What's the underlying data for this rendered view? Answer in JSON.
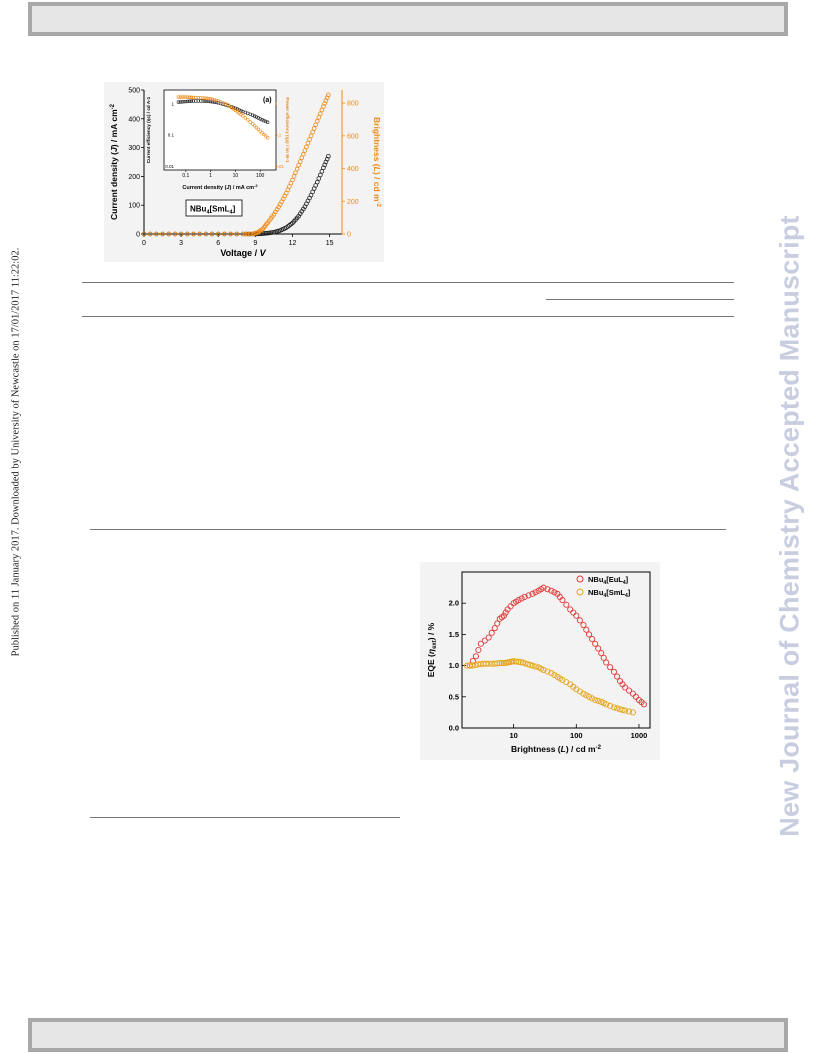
{
  "sidebar_left": "Published on 11 January 2017. Downloaded by University of Newcastle on 17/01/2017 11:22:02.",
  "watermark": "New Journal of Chemistry Accepted Manuscript",
  "colors": {
    "orange": "#ef8a17",
    "red": "#e23b3b",
    "gold": "#e6a41c",
    "black": "#222222"
  },
  "figure1": {
    "chart_data": {
      "type": "scatter",
      "panel_label": "(a)",
      "legend_label": "NBu4[SmL4]",
      "legend_parts": [
        "NBu",
        "4",
        "[SmL",
        "4",
        "]"
      ],
      "xlabel": "Voltage / V",
      "xlabel_parts": [
        "Voltage / ",
        "V"
      ],
      "ylabel_left": "Current density (J) / mA cm-2",
      "ylabel_left_parts": [
        "Current density (",
        "J",
        ") / mA cm",
        "-2"
      ],
      "ylabel_right": "Brightness (L) / cd m-2",
      "ylabel_right_parts": [
        "Brightness (",
        "L",
        ") / cd m",
        "-2"
      ],
      "xlim": [
        0,
        16
      ],
      "ylim_left": [
        0,
        500
      ],
      "ylim_right": [
        0,
        880
      ],
      "xticks": [
        "0",
        "3",
        "6",
        "9",
        "12",
        "15"
      ],
      "yticks_left": [
        "0",
        "100",
        "200",
        "300",
        "400",
        "500"
      ],
      "yticks_right": [
        "0",
        "200",
        "400",
        "600",
        "800"
      ],
      "series": [
        {
          "axis": "left",
          "color": "#222222",
          "x": [
            0,
            2,
            4,
            6,
            8,
            9,
            9.5,
            10,
            10.5,
            11,
            11.5,
            12,
            12.5,
            13,
            13.5,
            14,
            14.5,
            14.9
          ],
          "y": [
            0,
            0,
            0,
            0,
            0,
            0,
            1,
            3,
            6,
            12,
            22,
            38,
            62,
            95,
            135,
            180,
            230,
            270
          ]
        },
        {
          "axis": "right",
          "color": "#ef8a17",
          "x": [
            0,
            2,
            4,
            6,
            8,
            8.8,
            9.2,
            9.6,
            10,
            10.5,
            11,
            11.5,
            12,
            12.5,
            13,
            13.5,
            14,
            14.5,
            14.9
          ],
          "y": [
            0,
            0,
            0,
            0,
            0,
            0,
            10,
            30,
            70,
            120,
            180,
            250,
            330,
            420,
            510,
            600,
            690,
            780,
            850
          ]
        }
      ],
      "inset": {
        "xlabel": "Current density (J) / mA cm-2",
        "xlabel_parts": [
          "Current density (",
          "J",
          ") / mA cm",
          "-2"
        ],
        "ylabel_left": "Current efficiency (ηc) / cd A-1",
        "ylabel_right": "Power efficiency (ηp) / lm W-1",
        "xticks": [
          "0.1",
          "1",
          "10",
          "100"
        ],
        "yticks_left": [
          "0.01",
          "0.1",
          "1"
        ],
        "yticks_right": [
          "0.01",
          "0.1",
          "1"
        ],
        "series": [
          {
            "color": "#222222",
            "x": [
              0.05,
              0.1,
              0.2,
              0.5,
              1,
              2,
              5,
              10,
              20,
              50,
              100,
              200
            ],
            "y": [
              1.1,
              1.15,
              1.2,
              1.2,
              1.15,
              1.05,
              0.85,
              0.7,
              0.55,
              0.42,
              0.32,
              0.25
            ]
          },
          {
            "color": "#ef8a17",
            "x": [
              0.05,
              0.1,
              0.2,
              0.5,
              1,
              2,
              5,
              10,
              20,
              50,
              100,
              200
            ],
            "y": [
              1.6,
              1.6,
              1.55,
              1.5,
              1.4,
              1.2,
              0.9,
              0.6,
              0.4,
              0.22,
              0.13,
              0.08
            ]
          }
        ]
      }
    }
  },
  "figure2": {
    "chart_data": {
      "type": "scatter",
      "xlabel": "Brightness (L) / cd m-2",
      "xlabel_parts": [
        "Brightness (",
        "L",
        ") / cd m",
        "-2"
      ],
      "ylabel": "EQE (ηext) / %",
      "ylabel_parts": [
        "EQE (",
        "η",
        "ext",
        ") / %"
      ],
      "xscale": "log",
      "xlim": [
        1.5,
        1500
      ],
      "ylim": [
        0,
        2.5
      ],
      "xticks": [
        "10",
        "100",
        "1000"
      ],
      "yticks": [
        "0.0",
        "0.5",
        "1.0",
        "1.5",
        "2.0"
      ],
      "series": [
        {
          "name": "NBu4[EuL4]",
          "name_parts": [
            "NBu",
            "4",
            "[EuL",
            "4",
            "]"
          ],
          "color": "#e23b3b",
          "x": [
            2,
            2.5,
            3,
            4,
            5,
            6,
            7,
            8,
            10,
            12,
            15,
            20,
            25,
            30,
            40,
            50,
            60,
            80,
            100,
            130,
            160,
            200,
            250,
            300,
            400,
            500,
            600,
            800,
            1000,
            1200
          ],
          "y": [
            1.0,
            1.15,
            1.35,
            1.45,
            1.6,
            1.75,
            1.8,
            1.9,
            2.0,
            2.05,
            2.1,
            2.15,
            2.2,
            2.25,
            2.2,
            2.15,
            2.05,
            1.9,
            1.8,
            1.65,
            1.5,
            1.35,
            1.2,
            1.05,
            0.9,
            0.75,
            0.65,
            0.55,
            0.45,
            0.38
          ]
        },
        {
          "name": "NBu4[SmL4]",
          "name_parts": [
            "NBu",
            "4",
            "[SmL",
            "4",
            "]"
          ],
          "color": "#e6a41c",
          "x": [
            1.8,
            2.2,
            2.7,
            3.3,
            4,
            5,
            6,
            7,
            8,
            9,
            10,
            12,
            14,
            17,
            20,
            25,
            30,
            40,
            50,
            60,
            80,
            100,
            130,
            160,
            200,
            250,
            300,
            400,
            500,
            600,
            800
          ],
          "y": [
            1.0,
            1.0,
            1.02,
            1.03,
            1.03,
            1.03,
            1.04,
            1.04,
            1.05,
            1.06,
            1.07,
            1.06,
            1.05,
            1.02,
            1.0,
            0.97,
            0.93,
            0.88,
            0.82,
            0.77,
            0.7,
            0.62,
            0.55,
            0.5,
            0.45,
            0.42,
            0.38,
            0.33,
            0.3,
            0.28,
            0.25
          ]
        }
      ],
      "legend_position": "top-right"
    }
  }
}
